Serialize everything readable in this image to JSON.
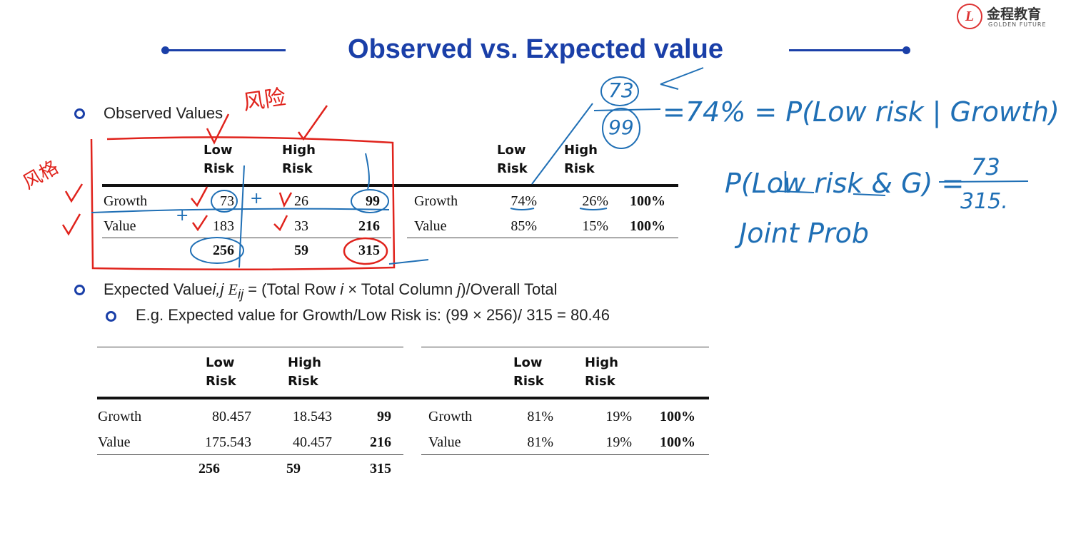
{
  "logo": {
    "cn": "金程教育",
    "en": "GOLDEN FUTURE",
    "mark": "L"
  },
  "title": "Observed vs. Expected value",
  "bullets": {
    "observed": "Observed Values",
    "expected_prefix": "Expected Value",
    "expected_ij": "i,j",
    "expected_E": "E",
    "expected_sub": "ij",
    "expected_formula": " = (Total Row ",
    "expected_i": "i",
    "expected_mid": " × Total Column ",
    "expected_j": "j",
    "expected_end": ")/Overall Total",
    "example": "E.g. Expected value for Growth/Low Risk is: (99 × 256)/ 315 = 80.46"
  },
  "headers": {
    "low1": "Low",
    "low2": "Risk",
    "high1": "High",
    "high2": "Risk"
  },
  "observed": {
    "rows": [
      {
        "label": "Growth",
        "low": "73",
        "high": "26",
        "total": "99"
      },
      {
        "label": "Value",
        "low": "183",
        "high": "33",
        "total": "216"
      }
    ],
    "totals": {
      "low": "256",
      "high": "59",
      "total": "315"
    }
  },
  "observed_pct": {
    "rows": [
      {
        "label": "Growth",
        "low": "74%",
        "high": "26%",
        "total": "100%"
      },
      {
        "label": "Value",
        "low": "85%",
        "high": "15%",
        "total": "100%"
      }
    ]
  },
  "expected": {
    "rows": [
      {
        "label": "Growth",
        "low": "80.457",
        "high": "18.543",
        "total": "99"
      },
      {
        "label": "Value",
        "low": "175.543",
        "high": "40.457",
        "total": "216"
      }
    ],
    "totals": {
      "low": "256",
      "high": "59",
      "total": "315"
    }
  },
  "expected_pct": {
    "rows": [
      {
        "label": "Growth",
        "low": "81%",
        "high": "19%",
        "total": "100%"
      },
      {
        "label": "Value",
        "low": "81%",
        "high": "19%",
        "total": "100%"
      }
    ]
  },
  "annotations": {
    "cond_num": "73",
    "cond_den": "99",
    "cond_eq": "=74% = P(Low risk | Growth)",
    "joint_lhs": "P(Low risk & G) =",
    "joint_num": "73",
    "joint_den": "315.",
    "joint_label": "Joint Prob",
    "risk_cn": "风险",
    "style_cn": "风格",
    "plus": "+"
  },
  "colors": {
    "accent": "#1a3fa8",
    "pen_blue": "#1f6fb5",
    "pen_red": "#e0231c"
  }
}
